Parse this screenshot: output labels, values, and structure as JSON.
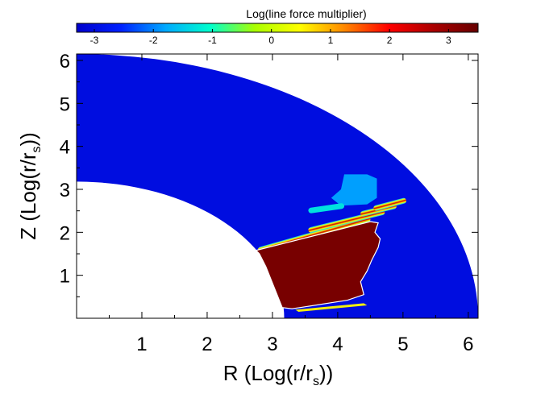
{
  "chart_data": {
    "type": "heatmap",
    "title": "",
    "colorbar": {
      "label": "Log(line force multiplier)",
      "range": [
        -3.3,
        3.5
      ],
      "ticks": [
        -3,
        -2,
        -1,
        0,
        1,
        2,
        3
      ],
      "tick_labels": [
        "-3",
        "-2",
        "-1",
        "0",
        "1",
        "2",
        "3"
      ],
      "colormap": [
        "#0000cc",
        "#0022ff",
        "#00aaff",
        "#00ffcc",
        "#aaff00",
        "#ffff00",
        "#ff8800",
        "#ff0000",
        "#aa0000",
        "#660000"
      ],
      "position": "top"
    },
    "xlabel": {
      "prefix": "R (Log(r/r",
      "sub": "s",
      "suffix": "))"
    },
    "ylabel": {
      "prefix": "Z (Log(r/r",
      "sub": "s",
      "suffix": "))"
    },
    "xlim": [
      0,
      6.15
    ],
    "ylim": [
      0,
      6.15
    ],
    "xticks": [
      1,
      2,
      3,
      4,
      5,
      6
    ],
    "xtick_labels": [
      "1",
      "2",
      "3",
      "4",
      "5",
      "6"
    ],
    "yticks": [
      1,
      2,
      3,
      4,
      5,
      6
    ],
    "ytick_labels": [
      "1",
      "2",
      "3",
      "4",
      "5",
      "6"
    ],
    "domain": {
      "shape": "quarter-annulus",
      "inner_radius": 3.18,
      "outer_radius": 6.15,
      "background_value": -3.0
    },
    "regions": [
      {
        "name": "dense-high-multiplier-region",
        "value": 3.3,
        "boundary_rz": [
          [
            3.15,
            0.25
          ],
          [
            2.9,
            1.2
          ],
          [
            2.8,
            1.5
          ],
          [
            2.75,
            1.58
          ],
          [
            4.5,
            2.25
          ],
          [
            4.62,
            2.22
          ],
          [
            4.57,
            2.0
          ],
          [
            4.65,
            1.85
          ],
          [
            4.62,
            1.65
          ],
          [
            4.52,
            1.35
          ],
          [
            4.45,
            1.1
          ],
          [
            4.35,
            0.85
          ],
          [
            4.4,
            0.55
          ],
          [
            4.15,
            0.42
          ],
          [
            3.3,
            0.22
          ]
        ]
      }
    ],
    "streaks": [
      {
        "from": [
          2.78,
          1.58
        ],
        "to": [
          4.5,
          2.32
        ],
        "value": 3.2
      },
      {
        "from": [
          3.55,
          2.04
        ],
        "to": [
          4.72,
          2.48
        ],
        "value": 3.0
      },
      {
        "from": [
          4.35,
          2.42
        ],
        "to": [
          4.9,
          2.62
        ],
        "value": 3.3
      },
      {
        "from": [
          4.55,
          2.55
        ],
        "to": [
          5.05,
          2.75
        ],
        "value": 3.0
      },
      {
        "from": [
          3.55,
          2.5
        ],
        "to": [
          4.1,
          2.62
        ],
        "value": -1.3
      }
    ],
    "patches": [
      {
        "name": "cyan-cloud",
        "value": -1.8,
        "polygon_rz": [
          [
            4.1,
            3.35
          ],
          [
            4.05,
            3.0
          ],
          [
            3.9,
            2.8
          ],
          [
            4.05,
            2.62
          ],
          [
            4.45,
            2.65
          ],
          [
            4.6,
            2.8
          ],
          [
            4.6,
            3.25
          ],
          [
            4.45,
            3.35
          ]
        ]
      },
      {
        "name": "base-fringe",
        "value": 0.5,
        "polygon_rz": [
          [
            3.35,
            0.2
          ],
          [
            4.4,
            0.35
          ],
          [
            4.45,
            0.3
          ],
          [
            3.4,
            0.15
          ]
        ]
      }
    ]
  }
}
